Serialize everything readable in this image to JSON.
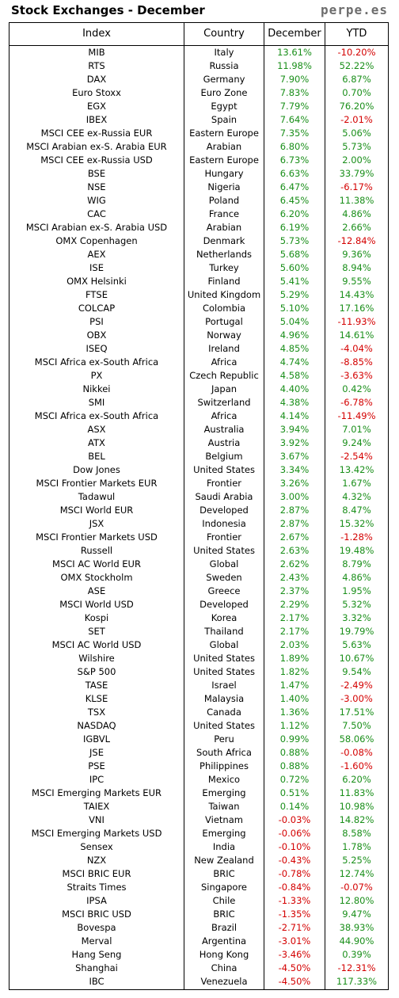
{
  "header": {
    "title": "Stock Exchanges - December",
    "brand": "perpe.es"
  },
  "table": {
    "columns": [
      "Index",
      "Country",
      "December",
      "YTD"
    ],
    "rows": [
      [
        "MIB",
        "Italy",
        "13.61%",
        "-10.20%"
      ],
      [
        "RTS",
        "Russia",
        "11.98%",
        "52.22%"
      ],
      [
        "DAX",
        "Germany",
        "7.90%",
        "6.87%"
      ],
      [
        "Euro Stoxx",
        "Euro Zone",
        "7.83%",
        "0.70%"
      ],
      [
        "EGX",
        "Egypt",
        "7.79%",
        "76.20%"
      ],
      [
        "IBEX",
        "Spain",
        "7.64%",
        "-2.01%"
      ],
      [
        "MSCI CEE ex-Russia EUR",
        "Eastern Europe",
        "7.35%",
        "5.06%"
      ],
      [
        "MSCI Arabian ex-S. Arabia EUR",
        "Arabian",
        "6.80%",
        "5.73%"
      ],
      [
        "MSCI CEE ex-Russia USD",
        "Eastern Europe",
        "6.73%",
        "2.00%"
      ],
      [
        "BSE",
        "Hungary",
        "6.63%",
        "33.79%"
      ],
      [
        "NSE",
        "Nigeria",
        "6.47%",
        "-6.17%"
      ],
      [
        "WIG",
        "Poland",
        "6.45%",
        "11.38%"
      ],
      [
        "CAC",
        "France",
        "6.20%",
        "4.86%"
      ],
      [
        "MSCI Arabian ex-S. Arabia USD",
        "Arabian",
        "6.19%",
        "2.66%"
      ],
      [
        "OMX Copenhagen",
        "Denmark",
        "5.73%",
        "-12.84%"
      ],
      [
        "AEX",
        "Netherlands",
        "5.68%",
        "9.36%"
      ],
      [
        "ISE",
        "Turkey",
        "5.60%",
        "8.94%"
      ],
      [
        "OMX Helsinki",
        "Finland",
        "5.41%",
        "9.55%"
      ],
      [
        "FTSE",
        "United Kingdom",
        "5.29%",
        "14.43%"
      ],
      [
        "COLCAP",
        "Colombia",
        "5.10%",
        "17.16%"
      ],
      [
        "PSI",
        "Portugal",
        "5.04%",
        "-11.93%"
      ],
      [
        "OBX",
        "Norway",
        "4.96%",
        "14.61%"
      ],
      [
        "ISEQ",
        "Ireland",
        "4.85%",
        "-4.04%"
      ],
      [
        "MSCI Africa ex-South Africa",
        "Africa",
        "4.74%",
        "-8.85%"
      ],
      [
        "PX",
        "Czech Republic",
        "4.58%",
        "-3.63%"
      ],
      [
        "Nikkei",
        "Japan",
        "4.40%",
        "0.42%"
      ],
      [
        "SMI",
        "Switzerland",
        "4.38%",
        "-6.78%"
      ],
      [
        "MSCI Africa ex-South Africa",
        "Africa",
        "4.14%",
        "-11.49%"
      ],
      [
        "ASX",
        "Australia",
        "3.94%",
        "7.01%"
      ],
      [
        "ATX",
        "Austria",
        "3.92%",
        "9.24%"
      ],
      [
        "BEL",
        "Belgium",
        "3.67%",
        "-2.54%"
      ],
      [
        "Dow Jones",
        "United States",
        "3.34%",
        "13.42%"
      ],
      [
        "MSCI Frontier Markets EUR",
        "Frontier",
        "3.26%",
        "1.67%"
      ],
      [
        "Tadawul",
        "Saudi Arabia",
        "3.00%",
        "4.32%"
      ],
      [
        "MSCI World EUR",
        "Developed",
        "2.87%",
        "8.47%"
      ],
      [
        "JSX",
        "Indonesia",
        "2.87%",
        "15.32%"
      ],
      [
        "MSCI Frontier Markets USD",
        "Frontier",
        "2.67%",
        "-1.28%"
      ],
      [
        "Russell",
        "United States",
        "2.63%",
        "19.48%"
      ],
      [
        "MSCI AC World EUR",
        "Global",
        "2.62%",
        "8.79%"
      ],
      [
        "OMX Stockholm",
        "Sweden",
        "2.43%",
        "4.86%"
      ],
      [
        "ASE",
        "Greece",
        "2.37%",
        "1.95%"
      ],
      [
        "MSCI World USD",
        "Developed",
        "2.29%",
        "5.32%"
      ],
      [
        "Kospi",
        "Korea",
        "2.17%",
        "3.32%"
      ],
      [
        "SET",
        "Thailand",
        "2.17%",
        "19.79%"
      ],
      [
        "MSCI AC World USD",
        "Global",
        "2.03%",
        "5.63%"
      ],
      [
        "Wilshire",
        "United States",
        "1.89%",
        "10.67%"
      ],
      [
        "S&P 500",
        "United States",
        "1.82%",
        "9.54%"
      ],
      [
        "TASE",
        "Israel",
        "1.47%",
        "-2.49%"
      ],
      [
        "KLSE",
        "Malaysia",
        "1.40%",
        "-3.00%"
      ],
      [
        "TSX",
        "Canada",
        "1.36%",
        "17.51%"
      ],
      [
        "NASDAQ",
        "United States",
        "1.12%",
        "7.50%"
      ],
      [
        "IGBVL",
        "Peru",
        "0.99%",
        "58.06%"
      ],
      [
        "JSE",
        "South Africa",
        "0.88%",
        "-0.08%"
      ],
      [
        "PSE",
        "Philippines",
        "0.88%",
        "-1.60%"
      ],
      [
        "IPC",
        "Mexico",
        "0.72%",
        "6.20%"
      ],
      [
        "MSCI Emerging Markets EUR",
        "Emerging",
        "0.51%",
        "11.83%"
      ],
      [
        "TAIEX",
        "Taiwan",
        "0.14%",
        "10.98%"
      ],
      [
        "VNI",
        "Vietnam",
        "-0.03%",
        "14.82%"
      ],
      [
        "MSCI Emerging Markets USD",
        "Emerging",
        "-0.06%",
        "8.58%"
      ],
      [
        "Sensex",
        "India",
        "-0.10%",
        "1.78%"
      ],
      [
        "NZX",
        "New Zealand",
        "-0.43%",
        "5.25%"
      ],
      [
        "MSCI BRIC EUR",
        "BRIC",
        "-0.78%",
        "12.74%"
      ],
      [
        "Straits Times",
        "Singapore",
        "-0.84%",
        "-0.07%"
      ],
      [
        "IPSA",
        "Chile",
        "-1.33%",
        "12.80%"
      ],
      [
        "MSCI BRIC USD",
        "BRIC",
        "-1.35%",
        "9.47%"
      ],
      [
        "Bovespa",
        "Brazil",
        "-2.71%",
        "38.93%"
      ],
      [
        "Merval",
        "Argentina",
        "-3.01%",
        "44.90%"
      ],
      [
        "Hang Seng",
        "Hong Kong",
        "-3.46%",
        "0.39%"
      ],
      [
        "Shanghai",
        "China",
        "-4.50%",
        "-12.31%"
      ],
      [
        "IBC",
        "Venezuela",
        "-4.50%",
        "117.33%"
      ]
    ]
  },
  "colors": {
    "positive": "#1a8f1a",
    "negative": "#d40000",
    "brand": "#6d6d6d"
  }
}
